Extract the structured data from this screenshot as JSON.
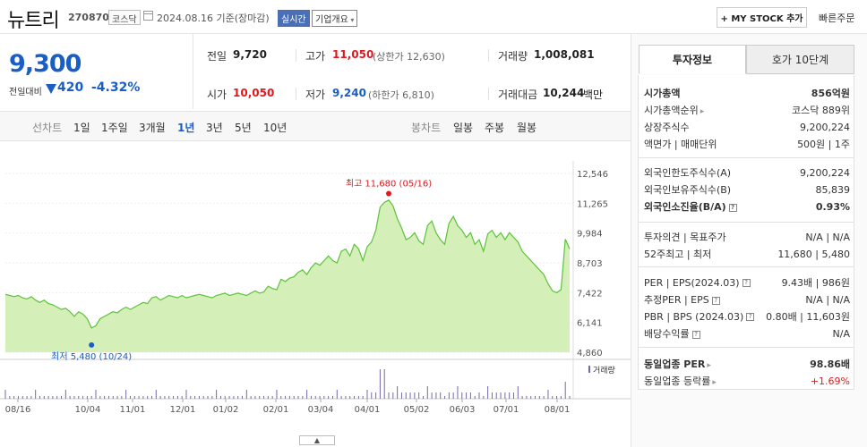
{
  "header": {
    "name": "뉴트리",
    "code": "270870",
    "market": "코스닥",
    "date": "2024.08.16  기준(장마감)",
    "live": "실시간",
    "company_info": "기업개요",
    "mystock": "+ MY STOCK 추가",
    "quick_order": "빠른주문"
  },
  "price": {
    "current": "9,300",
    "change_label": "전일대비",
    "change": "420",
    "change_pct": "-4.32%"
  },
  "stats": {
    "prev_label": "전일",
    "prev": "9,720",
    "high_label": "고가",
    "high": "11,050",
    "upper_limit": "(상한가 12,630)",
    "volume_label": "거래량",
    "volume": "1,008,081",
    "open_label": "시가",
    "open": "10,050",
    "low_label": "저가",
    "low": "9,240",
    "lower_limit": "(하한가 6,810)",
    "amount_label": "거래대금",
    "amount": "10,244",
    "amount_unit": "백만"
  },
  "periods": {
    "line_label": "선차트",
    "line": [
      "1일",
      "1주일",
      "3개월",
      "1년",
      "3년",
      "5년",
      "10년"
    ],
    "active": "1년",
    "candle_label": "봉차트",
    "candle": [
      "일봉",
      "주봉",
      "월봉"
    ]
  },
  "right_panel": {
    "tab_active": "투자정보",
    "tab_other": "호가 10단계",
    "rows": [
      {
        "k": "시가총액",
        "v": "856억원",
        "bold": true
      },
      {
        "k": "시가총액순위",
        "v": "코스닥 889위",
        "arrow": true
      },
      {
        "k": "상장주식수",
        "v": "9,200,224"
      },
      {
        "k": "액면가 | 매매단위",
        "v": "500원 | 1주"
      },
      {
        "k": "외국인한도주식수(A)",
        "v": "9,200,224"
      },
      {
        "k": "외국인보유주식수(B)",
        "v": "85,839"
      },
      {
        "k": "외국인소진율(B/A)",
        "v": "0.93%",
        "bold": true,
        "q": true
      },
      {
        "k": "투자의견 | 목표주가",
        "v": "N/A | N/A"
      },
      {
        "k": "52주최고 | 최저",
        "v": "11,680 | 5,480"
      },
      {
        "k": "PER | EPS(2024.03)",
        "v": "9.43배 | 986원",
        "q": true
      },
      {
        "k": "추정PER | EPS",
        "v": "N/A | N/A",
        "q": true
      },
      {
        "k": "PBR | BPS (2024.03)",
        "v": "0.80배 | 11,603원",
        "q": true
      },
      {
        "k": "배당수익률",
        "v": "N/A",
        "q": true
      },
      {
        "k": "동일업종 PER",
        "v": "98.86배",
        "bold": true,
        "arrow": true
      },
      {
        "k": "동일업종 등락률",
        "v": "+1.69%",
        "arrow": true,
        "red": true
      }
    ]
  },
  "chart_data": {
    "type": "area",
    "y_ticks": [
      "12,546",
      "11,265",
      "9,984",
      "8,703",
      "7,422",
      "6,141",
      "4,860"
    ],
    "ylim": [
      4860,
      12546
    ],
    "x_ticks": [
      "08/16",
      "10/04",
      "11/01",
      "12/01",
      "01/02",
      "02/01",
      "03/04",
      "04/01",
      "05/02",
      "06/03",
      "07/01",
      "08/01"
    ],
    "max_label": "최고 11,680 (05/16)",
    "min_label": "최저 5,480 (10/24)",
    "max_value": 11680,
    "min_value": 5480,
    "volume_label": "거래량",
    "series": [
      {
        "values": [
          7350,
          7300,
          7250,
          7300,
          7200,
          7150,
          7250,
          7100,
          7000,
          7100,
          6950,
          6900,
          6800,
          6700,
          6750,
          6600,
          6400,
          6600,
          6500,
          6300,
          5900,
          6000,
          6300,
          6400,
          6500,
          6600,
          6550,
          6700,
          6800,
          6700,
          6800,
          6900,
          7000,
          6950,
          7200,
          7250,
          7100,
          7200,
          7300,
          7250,
          7200,
          7300,
          7200,
          7250,
          7300,
          7350,
          7300,
          7250,
          7200,
          7300,
          7350,
          7400,
          7300,
          7350,
          7400,
          7350,
          7300,
          7400,
          7500,
          7400,
          7450,
          7700,
          7600,
          7550,
          8000,
          7900,
          8050,
          8100,
          8300,
          8400,
          8200,
          8500,
          8700,
          8600,
          8800,
          9000,
          8800,
          8700,
          9200,
          9300,
          9000,
          9500,
          9300,
          8800,
          9400,
          9600,
          10100,
          11100,
          11300,
          11400,
          11150,
          10600,
          10200,
          9700,
          9800,
          10000,
          9650,
          9500,
          10300,
          10500,
          10000,
          9700,
          9500,
          10400,
          10700,
          10300,
          10100,
          9800,
          10000,
          9500,
          9700,
          9200,
          9950,
          10100,
          9800,
          10000,
          9700,
          10000,
          9800,
          9600,
          9200,
          9000,
          8800,
          8600,
          8400,
          8200,
          7800,
          7500,
          7420,
          7550,
          9720,
          9300
        ]
      }
    ]
  }
}
